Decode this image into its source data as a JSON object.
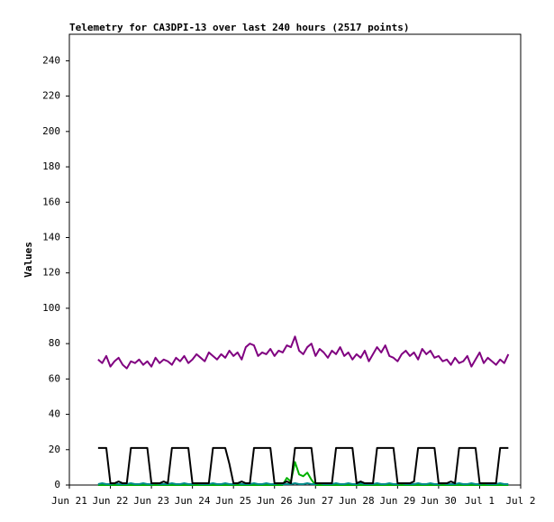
{
  "chart_data": {
    "type": "line",
    "title": "Telemetry for CA3DPI-13 over last 240 hours (2517 points)",
    "y_label": "Values",
    "x": [
      0.7,
      0.8,
      0.9,
      1.0,
      1.1,
      1.2,
      1.3,
      1.4,
      1.5,
      1.6,
      1.7,
      1.8,
      1.9,
      2.0,
      2.1,
      2.2,
      2.3,
      2.4,
      2.5,
      2.6,
      2.7,
      2.8,
      2.9,
      3.0,
      3.1,
      3.2,
      3.3,
      3.4,
      3.5,
      3.6,
      3.7,
      3.8,
      3.9,
      4.0,
      4.1,
      4.2,
      4.3,
      4.4,
      4.5,
      4.6,
      4.7,
      4.8,
      4.9,
      5.0,
      5.1,
      5.2,
      5.3,
      5.4,
      5.5,
      5.6,
      5.7,
      5.8,
      5.9,
      6.0,
      6.1,
      6.2,
      6.3,
      6.4,
      6.5,
      6.6,
      6.7,
      6.8,
      6.9,
      7.0,
      7.1,
      7.2,
      7.3,
      7.4,
      7.5,
      7.6,
      7.7,
      7.8,
      7.9,
      8.0,
      8.1,
      8.2,
      8.3,
      8.4,
      8.5,
      8.6,
      8.7,
      8.8,
      8.9,
      9.0,
      9.1,
      9.2,
      9.3,
      9.4,
      9.5,
      9.6,
      9.7,
      9.8,
      9.9,
      10.0,
      10.1,
      10.2,
      10.3,
      10.4,
      10.5,
      10.6,
      10.7
    ],
    "series": [
      {
        "color": "#00b000",
        "values": [
          0,
          0,
          0,
          0,
          0,
          0,
          0,
          0,
          0,
          0,
          0,
          0,
          0,
          0,
          0,
          0,
          0,
          0,
          0,
          0,
          0,
          0,
          0,
          0,
          0,
          0,
          0,
          0,
          0,
          0,
          0,
          0,
          0,
          0,
          0,
          0,
          0,
          0,
          0,
          0,
          0,
          0,
          0,
          0,
          0,
          0,
          4,
          2,
          13,
          6,
          5,
          7,
          3,
          0,
          0,
          0,
          0,
          0,
          0,
          0,
          0,
          0,
          0,
          0,
          0,
          0,
          0,
          0,
          0,
          0,
          0,
          0,
          0,
          0,
          0,
          0,
          0,
          0,
          0,
          0,
          0,
          0,
          0,
          0,
          0,
          0,
          0,
          0,
          0,
          0,
          0,
          0,
          0,
          0,
          0,
          0,
          0,
          0,
          0,
          0,
          0
        ]
      },
      {
        "color": "#008b8b",
        "values": [
          0.5,
          1,
          0.5,
          0.5,
          1,
          0.5,
          0.5,
          0.5,
          1,
          0.5,
          0.5,
          1,
          0.5,
          0.5,
          1,
          0.5,
          0.5,
          0.5,
          1,
          0.5,
          0.5,
          1,
          0.5,
          0.5,
          1,
          0.5,
          0.5,
          0.5,
          1,
          0.5,
          0.5,
          1,
          0.5,
          0.5,
          1,
          0.5,
          0.5,
          0.5,
          1,
          0.5,
          0.5,
          1,
          0.5,
          0.5,
          1,
          0.5,
          0.5,
          0.5,
          1,
          0.5,
          0.5,
          1,
          0.5,
          0.5,
          1,
          0.5,
          0.5,
          0.5,
          1,
          0.5,
          0.5,
          1,
          0.5,
          0.5,
          1,
          0.5,
          0.5,
          0.5,
          1,
          0.5,
          0.5,
          1,
          0.5,
          0.5,
          1,
          0.5,
          0.5,
          0.5,
          1,
          0.5,
          0.5,
          1,
          0.5,
          0.5,
          1,
          0.5,
          0.5,
          0.5,
          1,
          0.5,
          0.5,
          1,
          0.5,
          0.5,
          1,
          0.5,
          0.5,
          0.5,
          1,
          0.5,
          0.5
        ]
      },
      {
        "color": "#000000",
        "values": [
          21,
          21,
          21,
          1,
          1,
          2,
          1,
          1,
          21,
          21,
          21,
          21,
          21,
          1,
          1,
          1,
          2,
          1,
          21,
          21,
          21,
          21,
          21,
          1,
          1,
          1,
          1,
          1,
          21,
          21,
          21,
          21,
          12,
          1,
          1,
          2,
          1,
          1,
          21,
          21,
          21,
          21,
          21,
          1,
          1,
          1,
          2,
          1,
          21,
          21,
          21,
          21,
          21,
          1,
          1,
          1,
          1,
          1,
          21,
          21,
          21,
          21,
          21,
          1,
          2,
          1,
          1,
          1,
          21,
          21,
          21,
          21,
          21,
          1,
          1,
          1,
          1,
          2,
          21,
          21,
          21,
          21,
          21,
          1,
          1,
          1,
          2,
          1,
          21,
          21,
          21,
          21,
          21,
          1,
          1,
          1,
          1,
          1,
          21,
          21,
          21
        ]
      },
      {
        "color": "#800080",
        "values": [
          71,
          69,
          73,
          67,
          70,
          72,
          68,
          66,
          70,
          69,
          71,
          68,
          70,
          67,
          72,
          69,
          71,
          70,
          68,
          72,
          70,
          73,
          69,
          71,
          74,
          72,
          70,
          75,
          73,
          71,
          74,
          72,
          76,
          73,
          75,
          71,
          78,
          80,
          79,
          73,
          75,
          74,
          77,
          73,
          76,
          75,
          79,
          78,
          84,
          76,
          74,
          78,
          80,
          73,
          77,
          75,
          72,
          76,
          74,
          78,
          73,
          75,
          71,
          74,
          72,
          76,
          70,
          74,
          78,
          75,
          79,
          73,
          72,
          70,
          74,
          76,
          73,
          75,
          71,
          77,
          74,
          76,
          72,
          73,
          70,
          71,
          68,
          72,
          69,
          70,
          73,
          67,
          71,
          75,
          69,
          72,
          70,
          68,
          71,
          69,
          74
        ]
      }
    ],
    "xlim": [
      0,
      11
    ],
    "xticks": [
      {
        "value": 0,
        "label": "Jun 21"
      },
      {
        "value": 1,
        "label": "Jun 22"
      },
      {
        "value": 2,
        "label": "Jun 23"
      },
      {
        "value": 3,
        "label": "Jun 24"
      },
      {
        "value": 4,
        "label": "Jun 25"
      },
      {
        "value": 5,
        "label": "Jun 26"
      },
      {
        "value": 6,
        "label": "Jun 27"
      },
      {
        "value": 7,
        "label": "Jun 28"
      },
      {
        "value": 8,
        "label": "Jun 29"
      },
      {
        "value": 9,
        "label": "Jun 30"
      },
      {
        "value": 10,
        "label": "Jul 1"
      },
      {
        "value": 11,
        "label": "Jul 2"
      }
    ],
    "ylim": [
      0,
      255
    ],
    "yticks": [
      0,
      20,
      40,
      60,
      80,
      100,
      120,
      140,
      160,
      180,
      200,
      220,
      240
    ]
  }
}
